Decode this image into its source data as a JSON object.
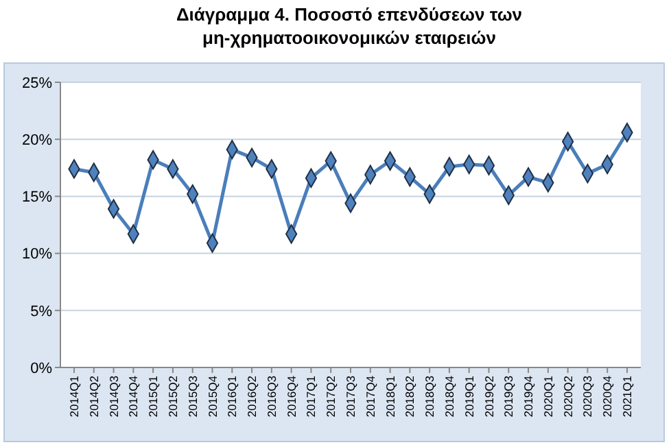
{
  "chart_data": {
    "type": "line",
    "title": "Διάγραμμα 4. Ποσοστό επενδύσεων των\nμη-χρηματοοικονομικών εταιρειών",
    "categories": [
      "2014Q1",
      "2014Q2",
      "2014Q3",
      "2014Q4",
      "2015Q1",
      "2015Q2",
      "2015Q3",
      "2015Q4",
      "2016Q1",
      "2016Q2",
      "2016Q3",
      "2016Q4",
      "2017Q1",
      "2017Q2",
      "2017Q3",
      "2017Q4",
      "2018Q1",
      "2018Q2",
      "2018Q3",
      "2018Q4",
      "2019Q1",
      "2019Q2",
      "2019Q3",
      "2019Q4",
      "2020Q1",
      "2020Q2",
      "2020Q3",
      "2020Q4",
      "2021Q1"
    ],
    "series": [
      {
        "color": "#4a7ebb",
        "values": [
          17.4,
          17.1,
          13.9,
          11.7,
          18.2,
          17.4,
          15.2,
          10.9,
          19.1,
          18.4,
          17.4,
          11.7,
          16.6,
          18.1,
          14.4,
          16.9,
          18.1,
          16.7,
          15.2,
          17.6,
          17.8,
          17.7,
          15.1,
          16.7,
          16.2,
          19.8,
          17.0,
          17.8,
          20.6
        ]
      }
    ],
    "ylim": [
      0,
      25
    ],
    "yticks": [
      {
        "value": 0,
        "label": "0%"
      },
      {
        "value": 5,
        "label": "5%"
      },
      {
        "value": 10,
        "label": "10%"
      },
      {
        "value": 15,
        "label": "15%"
      },
      {
        "value": 20,
        "label": "20%"
      },
      {
        "value": 25,
        "label": "25%"
      }
    ],
    "grid": "y",
    "marker": "diamond",
    "line_style": "solid"
  }
}
